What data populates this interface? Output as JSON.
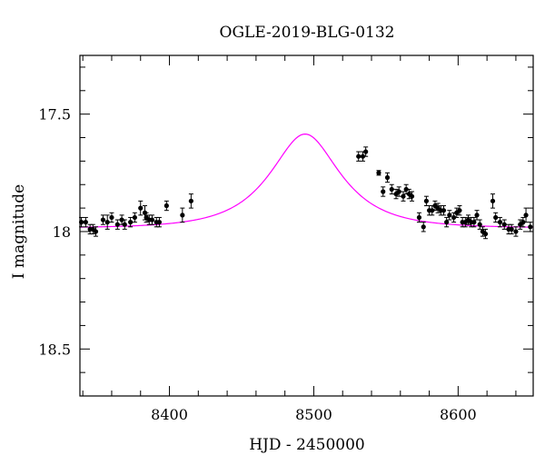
{
  "chart_data": {
    "type": "scatter",
    "title": "OGLE-2019-BLG-0132",
    "xlabel": "HJD - 2450000",
    "ylabel": "I magnitude",
    "xlim": [
      8338,
      8652
    ],
    "ylim": [
      18.7,
      17.25
    ],
    "y_inverted": true,
    "x_ticks": [
      8400,
      8500,
      8600
    ],
    "x_tick_labels": [
      "8400",
      "8500",
      "8600"
    ],
    "y_ticks": [
      17.5,
      18,
      18.5
    ],
    "y_tick_labels": [
      "17.5",
      "18",
      "18.5"
    ],
    "grid": false,
    "model": {
      "type": "line",
      "color": "#ff00ff",
      "t0": 8494,
      "u0": 0.55,
      "tE": 40,
      "base_mag": 17.985
    },
    "series": [
      {
        "type": "scatter",
        "color": "#000000",
        "x": [
          8339,
          8342,
          8345,
          8347,
          8349,
          8354,
          8357,
          8360,
          8364,
          8367,
          8369,
          8373,
          8376,
          8380,
          8383,
          8384,
          8386,
          8388,
          8391,
          8393,
          8398,
          8409,
          8415,
          8531,
          8534,
          8536,
          8545,
          8548,
          8551,
          8554,
          8557,
          8559,
          8562,
          8564,
          8566,
          8568,
          8573,
          8576,
          8578,
          8580,
          8582,
          8584,
          8586,
          8588,
          8590,
          8592,
          8594,
          8597,
          8599,
          8601,
          8603,
          8605,
          8607,
          8609,
          8611,
          8613,
          8615,
          8617,
          8619,
          8624,
          8626,
          8629,
          8632,
          8635,
          8637,
          8640,
          8643,
          8645,
          8647,
          8650
        ],
        "y": [
          17.96,
          17.96,
          17.99,
          17.99,
          18.0,
          17.95,
          17.96,
          17.94,
          17.97,
          17.95,
          17.97,
          17.96,
          17.94,
          17.9,
          17.92,
          17.94,
          17.95,
          17.95,
          17.96,
          17.96,
          17.89,
          17.93,
          17.87,
          17.68,
          17.68,
          17.66,
          17.75,
          17.83,
          17.77,
          17.82,
          17.84,
          17.83,
          17.85,
          17.82,
          17.84,
          17.85,
          17.94,
          17.98,
          17.87,
          17.91,
          17.91,
          17.89,
          17.9,
          17.91,
          17.91,
          17.96,
          17.93,
          17.94,
          17.92,
          17.91,
          17.96,
          17.96,
          17.95,
          17.96,
          17.96,
          17.93,
          17.97,
          18.0,
          18.01,
          17.87,
          17.94,
          17.96,
          17.97,
          17.99,
          17.99,
          18.0,
          17.97,
          17.96,
          17.93,
          17.98
        ],
        "yerr": [
          0.02,
          0.02,
          0.02,
          0.02,
          0.02,
          0.02,
          0.03,
          0.02,
          0.02,
          0.02,
          0.02,
          0.02,
          0.02,
          0.03,
          0.03,
          0.02,
          0.02,
          0.02,
          0.02,
          0.02,
          0.02,
          0.03,
          0.03,
          0.02,
          0.02,
          0.02,
          0.01,
          0.02,
          0.02,
          0.02,
          0.02,
          0.02,
          0.02,
          0.02,
          0.02,
          0.02,
          0.02,
          0.02,
          0.02,
          0.02,
          0.02,
          0.02,
          0.02,
          0.02,
          0.02,
          0.02,
          0.02,
          0.02,
          0.02,
          0.02,
          0.02,
          0.02,
          0.02,
          0.02,
          0.02,
          0.02,
          0.02,
          0.02,
          0.02,
          0.03,
          0.02,
          0.02,
          0.02,
          0.02,
          0.02,
          0.02,
          0.02,
          0.02,
          0.03,
          0.02
        ]
      }
    ]
  }
}
